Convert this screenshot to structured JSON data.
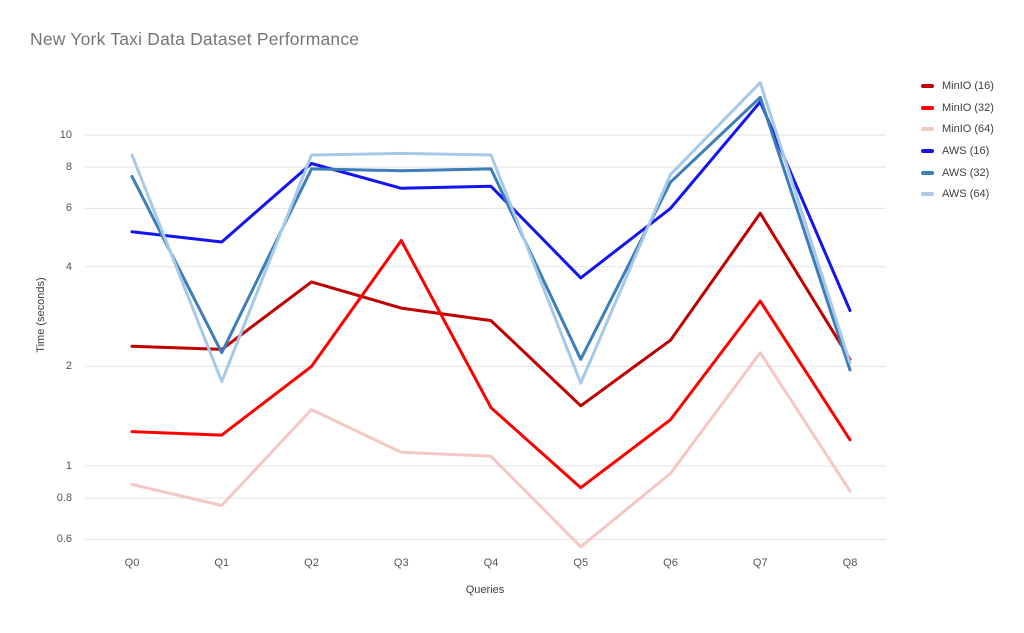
{
  "chart_data": {
    "type": "line",
    "title": "New York Taxi Data Dataset Performance",
    "xlabel": "Queries",
    "ylabel": "Time (seconds)",
    "y_scale": "log",
    "ylim": [
      0.5,
      16
    ],
    "grid": true,
    "legend_position": "right",
    "categories": [
      "Q0",
      "Q1",
      "Q2",
      "Q3",
      "Q4",
      "Q5",
      "Q6",
      "Q7",
      "Q8"
    ],
    "ytick_labels": [
      "10",
      "8",
      "6",
      "4",
      "2",
      "1",
      "0.8",
      "0.6"
    ],
    "series": [
      {
        "name": "MinIO (16)",
        "color": "#C00000",
        "values": [
          2.3,
          2.25,
          3.6,
          3.0,
          2.75,
          1.52,
          2.4,
          5.8,
          2.1
        ]
      },
      {
        "name": "MinIO (32)",
        "color": "#FF0000",
        "values": [
          1.27,
          1.24,
          2.0,
          4.8,
          1.5,
          0.86,
          1.38,
          3.15,
          1.2
        ]
      },
      {
        "name": "MinIO (64)",
        "color": "#F5C7C4",
        "values": [
          0.88,
          0.76,
          1.48,
          1.1,
          1.07,
          0.57,
          0.95,
          2.2,
          0.84
        ]
      },
      {
        "name": "AWS (16)",
        "color": "#1414F0",
        "values": [
          5.1,
          4.75,
          8.2,
          6.9,
          7.0,
          3.7,
          6.0,
          12.6,
          2.95
        ]
      },
      {
        "name": "AWS (32)",
        "color": "#3D7EB8",
        "values": [
          7.5,
          2.2,
          7.9,
          7.8,
          7.9,
          2.1,
          7.2,
          13.0,
          1.95
        ]
      },
      {
        "name": "AWS (64)",
        "color": "#A6C9E8",
        "values": [
          8.7,
          1.8,
          8.7,
          8.8,
          8.7,
          1.78,
          7.6,
          14.4,
          2.05
        ]
      }
    ]
  }
}
